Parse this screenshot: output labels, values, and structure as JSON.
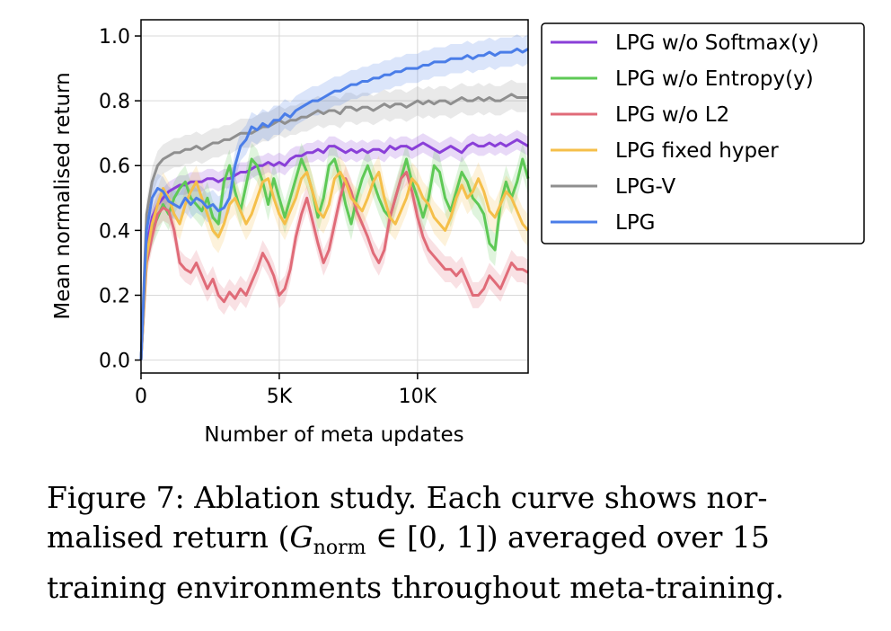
{
  "chart_data": {
    "type": "line",
    "title": "",
    "xlabel": "Number of meta updates",
    "ylabel": "Mean normalised return",
    "xlim": [
      0,
      14000
    ],
    "ylim": [
      -0.04,
      1.05
    ],
    "xticks": [
      0,
      5000,
      10000
    ],
    "xtick_labels": [
      "0",
      "5K",
      "10K"
    ],
    "yticks": [
      0.0,
      0.2,
      0.4,
      0.6,
      0.8,
      1.0
    ],
    "ytick_labels": [
      "0.0",
      "0.2",
      "0.4",
      "0.6",
      "0.8",
      "1.0"
    ],
    "grid": true,
    "legend_position": "outside-right",
    "x": [
      0,
      200,
      400,
      600,
      800,
      1000,
      1200,
      1400,
      1600,
      1800,
      2000,
      2200,
      2400,
      2600,
      2800,
      3000,
      3200,
      3400,
      3600,
      3800,
      4000,
      4200,
      4400,
      4600,
      4800,
      5000,
      5200,
      5400,
      5600,
      5800,
      6000,
      6200,
      6400,
      6600,
      6800,
      7000,
      7200,
      7400,
      7600,
      7800,
      8000,
      8200,
      8400,
      8600,
      8800,
      9000,
      9200,
      9400,
      9600,
      9800,
      10000,
      10200,
      10400,
      10600,
      10800,
      11000,
      11200,
      11400,
      11600,
      11800,
      12000,
      12200,
      12400,
      12600,
      12800,
      13000,
      13200,
      13400,
      13600,
      13800,
      14000
    ],
    "series": [
      {
        "name": "LPG w/o Softmax(y)",
        "color": "#8a3fd8",
        "band": 0.03,
        "values": [
          0.0,
          0.35,
          0.44,
          0.48,
          0.5,
          0.52,
          0.53,
          0.54,
          0.54,
          0.55,
          0.55,
          0.55,
          0.56,
          0.56,
          0.55,
          0.56,
          0.56,
          0.57,
          0.58,
          0.58,
          0.59,
          0.6,
          0.6,
          0.61,
          0.6,
          0.61,
          0.6,
          0.62,
          0.63,
          0.63,
          0.64,
          0.64,
          0.65,
          0.64,
          0.66,
          0.66,
          0.65,
          0.64,
          0.65,
          0.64,
          0.65,
          0.64,
          0.65,
          0.65,
          0.64,
          0.66,
          0.65,
          0.66,
          0.66,
          0.65,
          0.66,
          0.67,
          0.66,
          0.65,
          0.64,
          0.65,
          0.66,
          0.65,
          0.64,
          0.66,
          0.67,
          0.66,
          0.66,
          0.67,
          0.66,
          0.67,
          0.66,
          0.67,
          0.68,
          0.67,
          0.66
        ]
      },
      {
        "name": "LPG w/o Entropy(y)",
        "color": "#5ec956",
        "band": 0.05,
        "values": [
          0.0,
          0.33,
          0.4,
          0.44,
          0.48,
          0.45,
          0.5,
          0.53,
          0.55,
          0.5,
          0.48,
          0.46,
          0.5,
          0.44,
          0.42,
          0.55,
          0.6,
          0.52,
          0.46,
          0.54,
          0.62,
          0.6,
          0.55,
          0.48,
          0.56,
          0.5,
          0.44,
          0.5,
          0.56,
          0.62,
          0.58,
          0.52,
          0.44,
          0.5,
          0.6,
          0.62,
          0.56,
          0.48,
          0.42,
          0.5,
          0.56,
          0.6,
          0.55,
          0.5,
          0.46,
          0.44,
          0.5,
          0.56,
          0.62,
          0.55,
          0.5,
          0.44,
          0.5,
          0.6,
          0.58,
          0.5,
          0.46,
          0.52,
          0.58,
          0.55,
          0.5,
          0.48,
          0.45,
          0.36,
          0.34,
          0.48,
          0.55,
          0.5,
          0.55,
          0.62,
          0.56
        ]
      },
      {
        "name": "LPG w/o L2",
        "color": "#e06b78",
        "band": 0.04,
        "values": [
          0.0,
          0.3,
          0.38,
          0.45,
          0.47,
          0.46,
          0.4,
          0.3,
          0.28,
          0.27,
          0.3,
          0.26,
          0.22,
          0.25,
          0.2,
          0.18,
          0.21,
          0.19,
          0.22,
          0.2,
          0.24,
          0.28,
          0.33,
          0.3,
          0.26,
          0.2,
          0.22,
          0.28,
          0.38,
          0.45,
          0.5,
          0.43,
          0.36,
          0.3,
          0.34,
          0.42,
          0.5,
          0.56,
          0.52,
          0.46,
          0.42,
          0.38,
          0.33,
          0.3,
          0.34,
          0.44,
          0.5,
          0.56,
          0.58,
          0.52,
          0.44,
          0.38,
          0.34,
          0.32,
          0.3,
          0.28,
          0.28,
          0.26,
          0.28,
          0.24,
          0.2,
          0.2,
          0.22,
          0.26,
          0.24,
          0.22,
          0.26,
          0.3,
          0.28,
          0.28,
          0.27
        ]
      },
      {
        "name": "LPG fixed hyper",
        "color": "#f5bf4a",
        "band": 0.05,
        "values": [
          0.0,
          0.32,
          0.42,
          0.48,
          0.53,
          0.5,
          0.45,
          0.42,
          0.48,
          0.52,
          0.55,
          0.5,
          0.45,
          0.4,
          0.38,
          0.42,
          0.48,
          0.5,
          0.46,
          0.42,
          0.45,
          0.5,
          0.55,
          0.56,
          0.5,
          0.45,
          0.42,
          0.46,
          0.5,
          0.56,
          0.58,
          0.52,
          0.46,
          0.44,
          0.48,
          0.56,
          0.58,
          0.55,
          0.5,
          0.48,
          0.46,
          0.5,
          0.55,
          0.58,
          0.5,
          0.44,
          0.42,
          0.46,
          0.5,
          0.56,
          0.54,
          0.5,
          0.48,
          0.44,
          0.42,
          0.4,
          0.44,
          0.5,
          0.54,
          0.5,
          0.52,
          0.56,
          0.52,
          0.46,
          0.44,
          0.48,
          0.52,
          0.5,
          0.46,
          0.42,
          0.4
        ]
      },
      {
        "name": "LPG-V",
        "color": "#8f8f8f",
        "band": 0.045,
        "values": [
          0.0,
          0.45,
          0.55,
          0.6,
          0.62,
          0.63,
          0.64,
          0.64,
          0.65,
          0.65,
          0.66,
          0.65,
          0.66,
          0.67,
          0.67,
          0.68,
          0.68,
          0.69,
          0.7,
          0.7,
          0.7,
          0.71,
          0.72,
          0.72,
          0.73,
          0.74,
          0.73,
          0.74,
          0.74,
          0.75,
          0.75,
          0.76,
          0.77,
          0.76,
          0.77,
          0.77,
          0.76,
          0.78,
          0.78,
          0.77,
          0.78,
          0.78,
          0.77,
          0.78,
          0.79,
          0.78,
          0.79,
          0.79,
          0.78,
          0.79,
          0.8,
          0.79,
          0.8,
          0.79,
          0.8,
          0.8,
          0.79,
          0.8,
          0.81,
          0.8,
          0.8,
          0.81,
          0.8,
          0.81,
          0.8,
          0.8,
          0.81,
          0.82,
          0.81,
          0.81,
          0.81
        ]
      },
      {
        "name": "LPG",
        "color": "#4a7de8",
        "band": 0.045,
        "values": [
          0.0,
          0.4,
          0.5,
          0.53,
          0.52,
          0.49,
          0.48,
          0.47,
          0.5,
          0.48,
          0.5,
          0.49,
          0.47,
          0.48,
          0.46,
          0.47,
          0.5,
          0.6,
          0.66,
          0.68,
          0.72,
          0.71,
          0.73,
          0.72,
          0.74,
          0.74,
          0.76,
          0.75,
          0.77,
          0.78,
          0.79,
          0.8,
          0.8,
          0.81,
          0.82,
          0.83,
          0.83,
          0.84,
          0.85,
          0.85,
          0.86,
          0.86,
          0.87,
          0.87,
          0.88,
          0.88,
          0.89,
          0.89,
          0.9,
          0.9,
          0.9,
          0.91,
          0.91,
          0.92,
          0.92,
          0.92,
          0.93,
          0.93,
          0.93,
          0.94,
          0.93,
          0.94,
          0.94,
          0.95,
          0.94,
          0.95,
          0.95,
          0.95,
          0.96,
          0.95,
          0.96
        ]
      }
    ]
  },
  "caption": {
    "intro": "Figure 7: Ablation study. Each curve shows nor-malised return (",
    "math_symbol": "G",
    "math_subscript": "norm",
    "math_rest": " ∈ [0, 1]",
    "outro": ") averaged over 15 training environments throughout meta-training."
  }
}
